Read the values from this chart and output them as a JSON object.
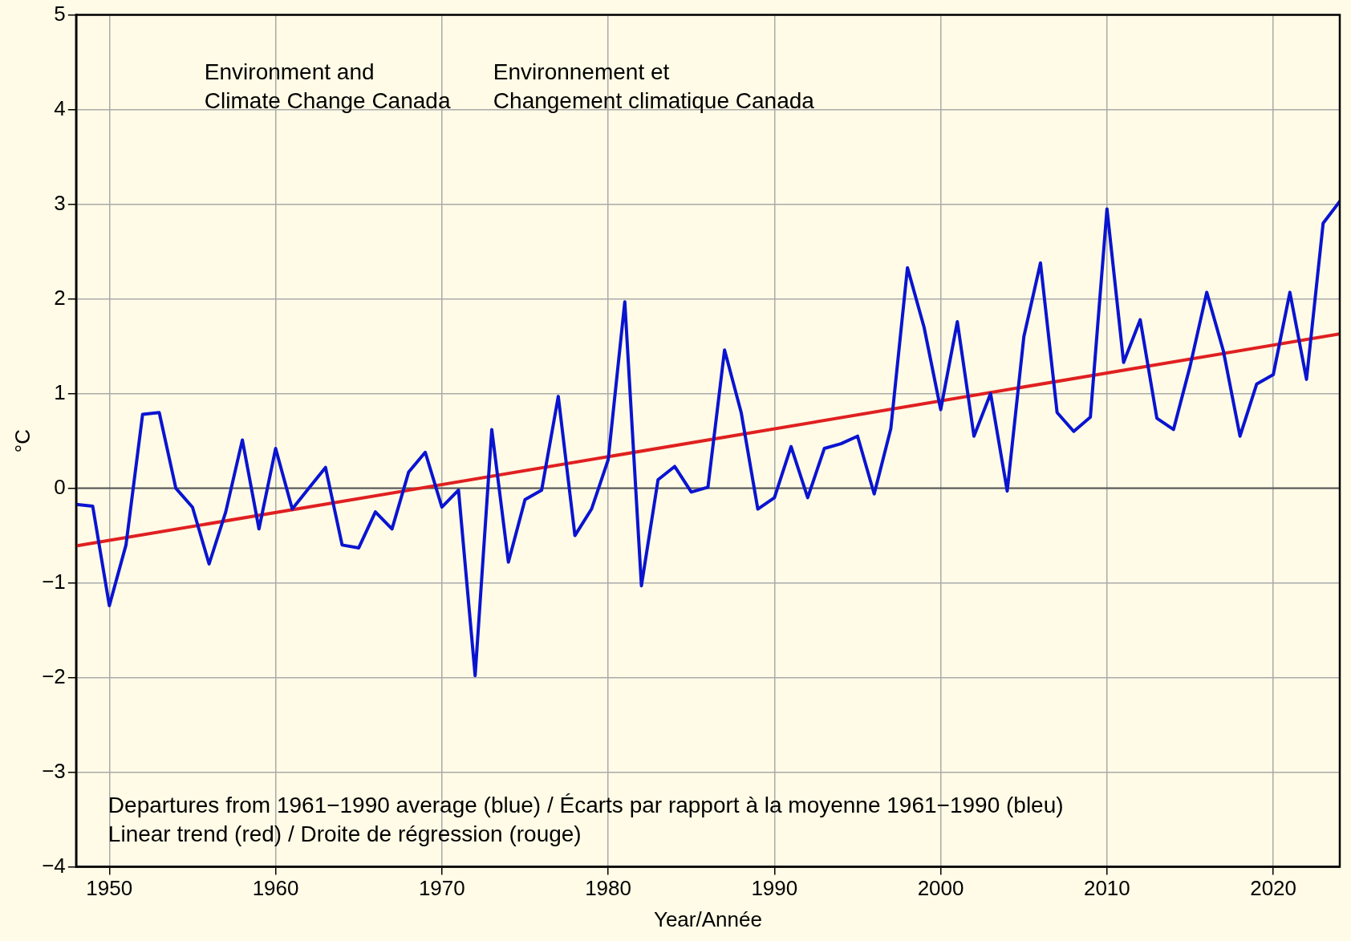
{
  "chart_data": {
    "type": "line",
    "xlabel": "Year/Année",
    "ylabel": "°C",
    "x": [
      1948,
      1949,
      1950,
      1951,
      1952,
      1953,
      1954,
      1955,
      1956,
      1957,
      1958,
      1959,
      1960,
      1961,
      1962,
      1963,
      1964,
      1965,
      1966,
      1967,
      1968,
      1969,
      1970,
      1971,
      1972,
      1973,
      1974,
      1975,
      1976,
      1977,
      1978,
      1979,
      1980,
      1981,
      1982,
      1983,
      1984,
      1985,
      1986,
      1987,
      1988,
      1989,
      1990,
      1991,
      1992,
      1993,
      1994,
      1995,
      1996,
      1997,
      1998,
      1999,
      2000,
      2001,
      2002,
      2003,
      2004,
      2005,
      2006,
      2007,
      2008,
      2009,
      2010,
      2011,
      2012,
      2013,
      2014,
      2015,
      2016,
      2017,
      2018,
      2019,
      2020,
      2021,
      2022,
      2023,
      2024
    ],
    "series": [
      {
        "color": "#0a14d0",
        "values": [
          -0.17,
          -0.19,
          -1.24,
          -0.6,
          0.78,
          0.8,
          0.0,
          -0.2,
          -0.8,
          -0.25,
          0.51,
          -0.43,
          0.42,
          -0.22,
          0.0,
          0.22,
          -0.6,
          -0.63,
          -0.25,
          -0.43,
          0.17,
          0.38,
          -0.2,
          -0.02,
          -1.98,
          0.62,
          -0.78,
          -0.12,
          -0.02,
          0.97,
          -0.5,
          -0.22,
          0.3,
          1.97,
          -1.03,
          0.09,
          0.23,
          -0.04,
          0.01,
          1.46,
          0.8,
          -0.22,
          -0.1,
          0.44,
          -0.1,
          0.42,
          0.47,
          0.55,
          -0.06,
          0.63,
          2.33,
          1.7,
          0.83,
          1.76,
          0.55,
          1.0,
          -0.03,
          1.6,
          2.38,
          0.8,
          0.6,
          0.75,
          2.95,
          1.33,
          1.78,
          0.74,
          0.62,
          1.29,
          2.07,
          1.45,
          0.55,
          1.1,
          1.2,
          2.07,
          1.15,
          2.8,
          3.03
        ]
      },
      {
        "type": "line",
        "color": "#e02020",
        "x": [
          1948,
          2024
        ],
        "values": [
          -0.61,
          1.63
        ]
      }
    ],
    "xlim": [
      1948,
      2024
    ],
    "xticks": [
      1950,
      1960,
      1970,
      1980,
      1990,
      2000,
      2010,
      2020
    ],
    "ylim": [
      -4,
      5
    ],
    "yticks": [
      -4,
      -3,
      -2,
      -1,
      0,
      1,
      2,
      3,
      4,
      5
    ],
    "grid": true,
    "legend": false,
    "marker": "none",
    "line_style": "solid",
    "ref_lines": [
      {
        "axis": "y",
        "value": 0,
        "color": "#555555"
      }
    ],
    "annotations": [
      "Environment and\nClimate Change Canada",
      "Environnement et\nChangement climatique Canada",
      "Departures from 1961−1990 average (blue) / Écarts par rapport à la moyenne 1961−1990 (bleu)",
      "Linear trend (red) / Droite de régression (rouge)"
    ]
  }
}
